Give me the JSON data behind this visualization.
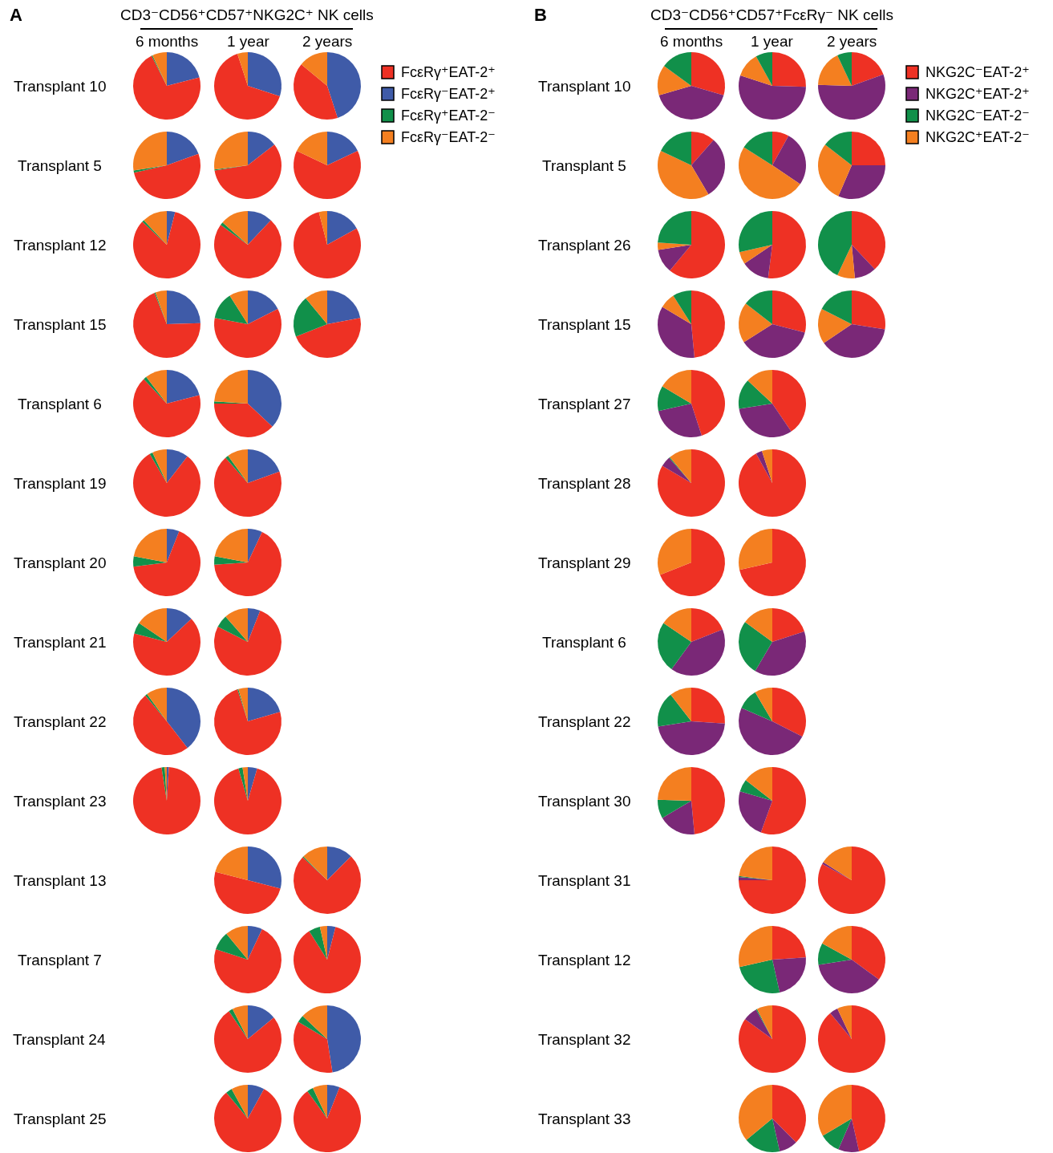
{
  "chart_data": [
    {
      "type": "other",
      "title": "CD3⁻CD56⁺CD57⁺NKG2C⁺ NK cells",
      "annotations": [
        "A"
      ],
      "categories": [
        "6 months",
        "1 year",
        "2 years"
      ]
    },
    {
      "type": "pie",
      "title": "Transplant 10",
      "legend": "right",
      "categories": [
        "FcεRγ⁺EAT-2⁺",
        "FcεRγ⁻EAT-2⁺",
        "FcεRγ⁺EAT-2⁻",
        "FcεRγ⁻EAT-2⁻"
      ],
      "colors": [
        "#ee3124",
        "#3f5ba8",
        "#11904a",
        "#f47f20"
      ],
      "series": [
        {
          "values": [
            71.5,
            21,
            0.5,
            7
          ]
        },
        {
          "values": [
            65,
            30,
            0,
            5
          ]
        },
        {
          "values": [
            41,
            45,
            0,
            14
          ]
        }
      ]
    },
    {
      "type": "pie",
      "title": "Transplant 5",
      "categories": [
        null,
        null,
        null,
        null
      ],
      "colors": [
        "#ee3124",
        "#3f5ba8",
        "#11904a",
        "#f47f20"
      ],
      "series": [
        {
          "values": [
            52,
            19.5,
            1,
            27.5
          ]
        },
        {
          "values": [
            58,
            14.5,
            0.5,
            27
          ]
        },
        {
          "values": [
            64,
            18,
            0,
            18
          ]
        }
      ]
    },
    {
      "type": "pie",
      "title": "Transplant 12",
      "categories": [
        null,
        null,
        null,
        null
      ],
      "colors": [
        "#ee3124",
        "#3f5ba8",
        "#11904a",
        "#f47f20"
      ],
      "series": [
        {
          "values": [
            83,
            4,
            1,
            12
          ]
        },
        {
          "values": [
            73,
            12,
            1.5,
            13.5
          ]
        },
        {
          "values": [
            79,
            17,
            0,
            4
          ]
        }
      ]
    },
    {
      "type": "pie",
      "title": "Transplant 15",
      "categories": [
        null,
        null,
        null,
        null
      ],
      "colors": [
        "#ee3124",
        "#3f5ba8",
        "#11904a",
        "#f47f20"
      ],
      "series": [
        {
          "values": [
            69.5,
            24.5,
            0.5,
            5.5
          ]
        },
        {
          "values": [
            60.5,
            17.5,
            13,
            9
          ]
        },
        {
          "values": [
            47,
            22,
            20,
            11
          ]
        }
      ]
    },
    {
      "type": "pie",
      "title": "Transplant 6",
      "categories": [
        null,
        null,
        null,
        null
      ],
      "colors": [
        "#ee3124",
        "#3f5ba8",
        "#11904a",
        "#f47f20"
      ],
      "series": [
        {
          "values": [
            67,
            21,
            1.5,
            10.5
          ]
        },
        {
          "values": [
            38,
            37,
            1,
            24
          ]
        }
      ]
    },
    {
      "type": "pie",
      "title": "Transplant 19",
      "categories": [
        null,
        null,
        null,
        null
      ],
      "colors": [
        "#ee3124",
        "#3f5ba8",
        "#11904a",
        "#f47f20"
      ],
      "series": [
        {
          "values": [
            81,
            10.5,
            1.5,
            7
          ]
        },
        {
          "values": [
            69,
            19.5,
            1.5,
            10
          ]
        }
      ]
    },
    {
      "type": "pie",
      "title": "Transplant 20",
      "categories": [
        null,
        null,
        null,
        null
      ],
      "colors": [
        "#ee3124",
        "#3f5ba8",
        "#11904a",
        "#f47f20"
      ],
      "series": [
        {
          "values": [
            67,
            6,
            5,
            22
          ]
        },
        {
          "values": [
            67,
            7,
            4,
            22
          ]
        }
      ]
    },
    {
      "type": "pie",
      "title": "Transplant 21",
      "categories": [
        null,
        null,
        null,
        null
      ],
      "colors": [
        "#ee3124",
        "#3f5ba8",
        "#11904a",
        "#f47f20"
      ],
      "series": [
        {
          "values": [
            66,
            13,
            5.5,
            15.5
          ]
        },
        {
          "values": [
            76.5,
            6,
            6,
            11.5
          ]
        }
      ]
    },
    {
      "type": "pie",
      "title": "Transplant 22",
      "categories": [
        null,
        null,
        null,
        null
      ],
      "colors": [
        "#ee3124",
        "#3f5ba8",
        "#11904a",
        "#f47f20"
      ],
      "series": [
        {
          "values": [
            49.5,
            39.5,
            1,
            10
          ]
        },
        {
          "values": [
            74.5,
            20.5,
            0.5,
            4.5
          ]
        }
      ]
    },
    {
      "type": "pie",
      "title": "Transplant 23",
      "categories": [
        null,
        null,
        null,
        null
      ],
      "colors": [
        "#ee3124",
        "#3f5ba8",
        "#11904a",
        "#f47f20"
      ],
      "series": [
        {
          "values": [
            96.5,
            1,
            1.5,
            1
          ]
        },
        {
          "values": [
            91,
            4.5,
            2,
            2.5
          ]
        }
      ]
    },
    {
      "type": "pie",
      "title": "Transplant 13",
      "categories": [
        null,
        null,
        null,
        null
      ],
      "colors": [
        "#ee3124",
        "#3f5ba8",
        "#11904a",
        "#f47f20"
      ],
      "series": [
        {
          "values": [
            50,
            29,
            0,
            21
          ]
        },
        {
          "values": [
            74.5,
            12.5,
            0.5,
            12.5
          ]
        }
      ]
    },
    {
      "type": "pie",
      "title": "Transplant 7",
      "categories": [
        null,
        null,
        null,
        null
      ],
      "colors": [
        "#ee3124",
        "#3f5ba8",
        "#11904a",
        "#f47f20"
      ],
      "series": [
        {
          "values": [
            73,
            7,
            9,
            11
          ]
        },
        {
          "values": [
            87,
            4,
            5.5,
            3.5
          ]
        }
      ]
    },
    {
      "type": "pie",
      "title": "Transplant 24",
      "categories": [
        null,
        null,
        null,
        null
      ],
      "colors": [
        "#ee3124",
        "#3f5ba8",
        "#11904a",
        "#f47f20"
      ],
      "series": [
        {
          "values": [
            76.5,
            14,
            2,
            7.5
          ]
        },
        {
          "values": [
            36,
            47.5,
            3.5,
            13
          ]
        }
      ]
    },
    {
      "type": "pie",
      "title": "Transplant 25",
      "categories": [
        null,
        null,
        null,
        null
      ],
      "colors": [
        "#ee3124",
        "#3f5ba8",
        "#11904a",
        "#f47f20"
      ],
      "series": [
        {
          "values": [
            81,
            8,
            3,
            8
          ]
        },
        {
          "values": [
            84,
            6,
            3,
            7
          ]
        }
      ]
    },
    {
      "type": "other",
      "title": "CD3⁻CD56⁺CD57⁺FcεRγ⁻ NK cells",
      "annotations": [
        "B"
      ],
      "categories": [
        "6 months",
        "1 year",
        "2 years"
      ]
    },
    {
      "type": "pie",
      "title": "Transplant 10",
      "legend": "right",
      "categories": [
        "NKG2C⁻EAT-2⁺",
        "NKG2C⁺EAT-2⁺",
        "NKG2C⁻EAT-2⁻",
        "NKG2C⁺EAT-2⁻"
      ],
      "colors": [
        "#ee3124",
        "#7a2877",
        "#11904a",
        "#f47f20"
      ],
      "series": [
        {
          "values": [
            29.5,
            41,
            15,
            14.5
          ]
        },
        {
          "values": [
            25.5,
            54.5,
            8,
            12
          ]
        },
        {
          "values": [
            19.5,
            56,
            7,
            17.5
          ]
        }
      ]
    },
    {
      "type": "pie",
      "title": "Transplant 5",
      "categories": [
        null,
        null,
        null,
        null
      ],
      "colors": [
        "#ee3124",
        "#7a2877",
        "#11904a",
        "#f47f20"
      ],
      "series": [
        {
          "values": [
            11.5,
            30,
            18,
            40.5
          ]
        },
        {
          "values": [
            8,
            26.5,
            16,
            49.5
          ]
        },
        {
          "values": [
            25,
            31.5,
            14.5,
            29
          ]
        }
      ]
    },
    {
      "type": "pie",
      "title": "Transplant 26",
      "categories": [
        null,
        null,
        null,
        null
      ],
      "colors": [
        "#ee3124",
        "#7a2877",
        "#11904a",
        "#f47f20"
      ],
      "series": [
        {
          "values": [
            61,
            11.5,
            24,
            3.5
          ]
        },
        {
          "values": [
            52,
            13.5,
            28.5,
            6
          ]
        },
        {
          "values": [
            38,
            10.5,
            43,
            8.5
          ]
        }
      ]
    },
    {
      "type": "pie",
      "title": "Transplant 15",
      "categories": [
        null,
        null,
        null,
        null
      ],
      "colors": [
        "#ee3124",
        "#7a2877",
        "#11904a",
        "#f47f20"
      ],
      "series": [
        {
          "values": [
            48.5,
            35,
            9,
            7.5
          ]
        },
        {
          "values": [
            29,
            37,
            14.5,
            19.5
          ]
        },
        {
          "values": [
            27.5,
            38,
            17.5,
            17
          ]
        }
      ]
    },
    {
      "type": "pie",
      "title": "Transplant 27",
      "categories": [
        null,
        null,
        null,
        null
      ],
      "colors": [
        "#ee3124",
        "#7a2877",
        "#11904a",
        "#f47f20"
      ],
      "series": [
        {
          "values": [
            45,
            26.5,
            12,
            16.5
          ]
        },
        {
          "values": [
            40.5,
            32,
            14.5,
            13
          ]
        }
      ]
    },
    {
      "type": "pie",
      "title": "Transplant 28",
      "categories": [
        null,
        null,
        null,
        null
      ],
      "colors": [
        "#ee3124",
        "#7a2877",
        "#11904a",
        "#f47f20"
      ],
      "series": [
        {
          "values": [
            83.5,
            5,
            0.5,
            11
          ]
        },
        {
          "values": [
            92,
            3,
            0,
            5
          ]
        }
      ]
    },
    {
      "type": "pie",
      "title": "Transplant 29",
      "categories": [
        null,
        null,
        null,
        null
      ],
      "colors": [
        "#ee3124",
        "#7a2877",
        "#11904a",
        "#f47f20"
      ],
      "series": [
        {
          "values": [
            69,
            0,
            0,
            31
          ]
        },
        {
          "values": [
            71.5,
            0,
            0,
            28.5
          ]
        }
      ]
    },
    {
      "type": "pie",
      "title": "Transplant 6",
      "categories": [
        null,
        null,
        null,
        null
      ],
      "colors": [
        "#ee3124",
        "#7a2877",
        "#11904a",
        "#f47f20"
      ],
      "series": [
        {
          "values": [
            19,
            41,
            24.5,
            15.5
          ]
        },
        {
          "values": [
            20,
            38.5,
            26.5,
            15
          ]
        }
      ]
    },
    {
      "type": "pie",
      "title": "Transplant 22",
      "categories": [
        null,
        null,
        null,
        null
      ],
      "colors": [
        "#ee3124",
        "#7a2877",
        "#11904a",
        "#f47f20"
      ],
      "series": [
        {
          "values": [
            26,
            46.5,
            17,
            10.5
          ]
        },
        {
          "values": [
            32.5,
            49,
            10,
            8.5
          ]
        }
      ]
    },
    {
      "type": "pie",
      "title": "Transplant 30",
      "categories": [
        null,
        null,
        null,
        null
      ],
      "colors": [
        "#ee3124",
        "#7a2877",
        "#11904a",
        "#f47f20"
      ],
      "series": [
        {
          "values": [
            48.5,
            18,
            9,
            24.5
          ]
        },
        {
          "values": [
            55.5,
            24,
            6,
            14.5
          ]
        }
      ]
    },
    {
      "type": "pie",
      "title": "Transplant 31",
      "categories": [
        null,
        null,
        null,
        null
      ],
      "colors": [
        "#ee3124",
        "#7a2877",
        "#11904a",
        "#f47f20"
      ],
      "series": [
        {
          "values": [
            75,
            1.5,
            0.5,
            23
          ]
        },
        {
          "values": [
            83,
            1,
            0,
            16
          ]
        }
      ]
    },
    {
      "type": "pie",
      "title": "Transplant 12",
      "categories": [
        null,
        null,
        null,
        null
      ],
      "colors": [
        "#ee3124",
        "#7a2877",
        "#11904a",
        "#f47f20"
      ],
      "series": [
        {
          "values": [
            24,
            22.5,
            25,
            28.5
          ]
        },
        {
          "values": [
            35,
            37.5,
            10.5,
            17
          ]
        }
      ]
    },
    {
      "type": "pie",
      "title": "Transplant 32",
      "categories": [
        null,
        null,
        null,
        null
      ],
      "colors": [
        "#ee3124",
        "#7a2877",
        "#11904a",
        "#f47f20"
      ],
      "series": [
        {
          "values": [
            85,
            7,
            0.5,
            7.5
          ]
        },
        {
          "values": [
            89,
            4,
            0,
            7
          ]
        }
      ]
    },
    {
      "type": "pie",
      "title": "Transplant 33",
      "categories": [
        null,
        null,
        null,
        null
      ],
      "colors": [
        "#ee3124",
        "#7a2877",
        "#11904a",
        "#f47f20"
      ],
      "series": [
        {
          "values": [
            37.5,
            9,
            17.5,
            36
          ]
        },
        {
          "values": [
            46.5,
            10,
            10,
            33.5
          ]
        }
      ]
    }
  ]
}
